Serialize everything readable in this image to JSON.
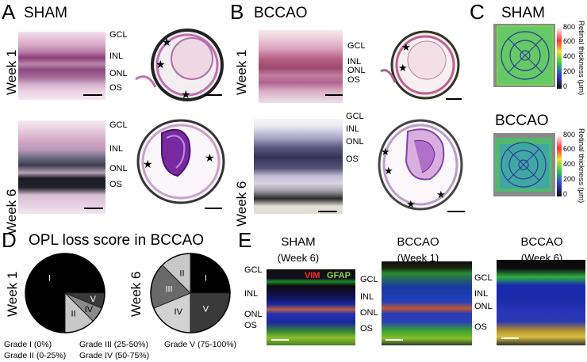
{
  "panels": {
    "A": {
      "letter": "A",
      "title": "SHAM"
    },
    "B": {
      "letter": "B",
      "title": "BCCAO"
    },
    "C": {
      "letter": "C",
      "title_top": "SHAM",
      "title_bottom": "BCCAO"
    },
    "D": {
      "letter": "D",
      "title": "OPL loss score in BCCAO"
    },
    "E": {
      "letter": "E"
    }
  },
  "weeks": {
    "w1": "Week 1",
    "w6": "Week 6"
  },
  "layers": {
    "gcl": "GCL",
    "inl": "INL",
    "onl": "ONL",
    "os": "OS"
  },
  "colorbar": {
    "label": "Retinal thickness (μm)",
    "ticks": [
      "800",
      "600",
      "400",
      "200",
      "0"
    ]
  },
  "grades": {
    "g1": "Grade I (0%)",
    "g2": "Grade II (0-25%)",
    "g3": "Grade III (25-50%)",
    "g4": "Grade IV (50-75%)",
    "g5": "Grade V (75-100%)"
  },
  "panelE": {
    "c1_title": "SHAM",
    "c1_sub": "(Week 6)",
    "c2_title": "BCCAO",
    "c2_sub": "(Week 1)",
    "c3_title": "BCCAO",
    "c3_sub": "(Week 6)",
    "vim": "VIM",
    "gfap": "GFAP"
  },
  "chart_data": [
    {
      "type": "pie",
      "label": "Week 1",
      "slices": [
        {
          "name": "I",
          "value": 75,
          "color": "#000000"
        },
        {
          "name": "II",
          "value": 12.5,
          "color": "#c8c8c8"
        },
        {
          "name": "IV",
          "value": 6.25,
          "color": "#8a8a8a"
        },
        {
          "name": "V",
          "value": 6.25,
          "color": "#3a3a3a"
        }
      ]
    },
    {
      "type": "pie",
      "label": "Week 6",
      "slices": [
        {
          "name": "I",
          "value": 25,
          "color": "#000000"
        },
        {
          "name": "V",
          "value": 25,
          "color": "#3a3a3a"
        },
        {
          "name": "IV",
          "value": 18.75,
          "color": "#d2d2d2"
        },
        {
          "name": "III",
          "value": 18.75,
          "color": "#6a6a6a"
        },
        {
          "name": "II",
          "value": 12.5,
          "color": "#c8c8c8"
        }
      ]
    }
  ]
}
